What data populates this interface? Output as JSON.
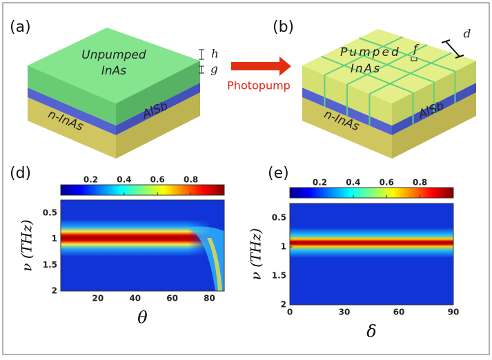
{
  "panels": {
    "a": {
      "label": "(a)",
      "top_layer": [
        "Unpumped",
        "InAs"
      ],
      "middle_layer": "AlSb",
      "bottom_layer": "n-InAs",
      "h": "h",
      "g": "g"
    },
    "arrow": "Photopump",
    "b": {
      "label": "(b)",
      "top_layer": [
        "Pumped",
        "InAs"
      ],
      "middle_layer": "AlSb",
      "bottom_layer": "n-InAs",
      "f": "f",
      "d": "d"
    },
    "d": {
      "label": "(d)",
      "y_label": "ν (THz)",
      "x_label": "θ",
      "colorbar_lim": [
        0.02,
        1
      ],
      "colorbar_ticks": [
        0.2,
        0.4,
        0.6,
        0.8
      ],
      "xlim": [
        0,
        88
      ],
      "xticks": [
        20,
        40,
        60,
        80
      ],
      "ylim": [
        0.25,
        2
      ],
      "yticks": [
        0.5,
        1,
        1.5,
        2
      ]
    },
    "e": {
      "label": "(e)",
      "y_label": "ν (THz)",
      "x_label": "δ",
      "colorbar_lim": [
        0.02,
        1
      ],
      "colorbar_ticks": [
        0.2,
        0.4,
        0.6,
        0.8
      ],
      "xlim": [
        0,
        90
      ],
      "xticks": [
        0,
        30,
        60,
        90
      ],
      "ylim": [
        0.25,
        2
      ],
      "yticks": [
        0.5,
        1,
        1.5,
        2
      ]
    }
  }
}
